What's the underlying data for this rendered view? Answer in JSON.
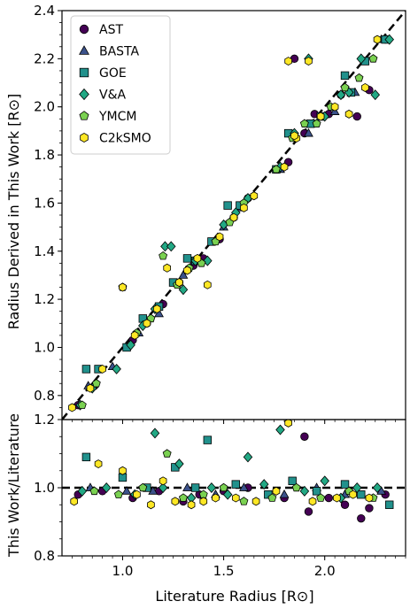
{
  "chart_data": [
    {
      "type": "scatter",
      "panel": "top",
      "xlabel": "",
      "ylabel": "Radius Derived in This Work [R⊙]",
      "xlim": [
        0.7,
        2.4
      ],
      "ylim": [
        0.7,
        2.4
      ],
      "yticks": [
        "0.8",
        "1.0",
        "1.2",
        "1.4",
        "1.6",
        "1.8",
        "2.0",
        "2.2",
        "2.4"
      ],
      "ytick_values": [
        0.8,
        1.0,
        1.2,
        1.4,
        1.6,
        1.8,
        2.0,
        2.2,
        2.4
      ],
      "reference_line": "y = x (dashed)",
      "legend_position": "upper-left",
      "series": [
        {
          "name": "AST",
          "marker": "circle",
          "color": "#440154",
          "x": [
            0.78,
            0.86,
            1.05,
            1.12,
            1.2,
            1.28,
            1.35,
            1.4,
            1.48,
            1.55,
            1.62,
            1.82,
            1.9,
            1.95,
            2.02,
            2.08,
            2.16,
            2.22,
            2.3,
            1.85
          ],
          "y": [
            0.76,
            0.84,
            1.03,
            1.1,
            1.18,
            1.27,
            1.34,
            1.37,
            1.45,
            1.54,
            1.62,
            1.77,
            1.89,
            1.97,
            1.97,
            2.05,
            1.96,
            2.07,
            2.28,
            2.2
          ]
        },
        {
          "name": "BASTA",
          "marker": "triangle",
          "color": "#3b528b",
          "x": [
            0.83,
            0.95,
            1.08,
            1.18,
            1.3,
            1.38,
            1.5,
            1.58,
            1.78,
            1.92,
            2.05,
            2.15,
            2.28
          ],
          "y": [
            0.84,
            0.92,
            1.06,
            1.14,
            1.3,
            1.36,
            1.5,
            1.58,
            1.74,
            1.89,
            1.98,
            2.06,
            2.28
          ]
        },
        {
          "name": "GOE",
          "marker": "square",
          "color": "#21918c",
          "x": [
            0.82,
            0.88,
            1.02,
            1.1,
            1.18,
            1.25,
            1.32,
            1.36,
            1.44,
            1.52,
            1.58,
            1.76,
            1.82,
            1.93,
            1.98,
            2.1,
            2.13,
            2.2,
            2.3
          ],
          "y": [
            0.91,
            0.91,
            1.0,
            1.12,
            1.17,
            1.27,
            1.37,
            1.36,
            1.44,
            1.59,
            1.59,
            1.74,
            1.89,
            1.93,
            1.96,
            2.13,
            2.06,
            2.19,
            2.28
          ]
        },
        {
          "name": "V&A",
          "marker": "diamond",
          "color": "#22a884",
          "x": [
            0.79,
            0.85,
            0.97,
            1.04,
            1.1,
            1.16,
            1.21,
            1.24,
            1.3,
            1.36,
            1.42,
            1.5,
            1.56,
            1.62,
            1.78,
            1.85,
            1.92,
            2.0,
            2.08,
            2.12,
            2.18,
            2.25,
            2.32
          ],
          "y": [
            0.76,
            0.83,
            0.91,
            1.01,
            1.09,
            1.16,
            1.42,
            1.42,
            1.24,
            1.36,
            1.36,
            1.51,
            1.56,
            1.62,
            1.75,
            1.89,
            2.2,
            1.96,
            2.05,
            2.06,
            2.2,
            2.05,
            2.28
          ]
        },
        {
          "name": "YMCM",
          "marker": "pentagon",
          "color": "#7ad151",
          "x": [
            0.8,
            0.87,
            1.0,
            1.07,
            1.14,
            1.2,
            1.27,
            1.33,
            1.39,
            1.46,
            1.53,
            1.6,
            1.76,
            1.84,
            1.9,
            1.96,
            2.03,
            2.1,
            2.17,
            2.24
          ],
          "y": [
            0.76,
            0.85,
            1.25,
            1.06,
            1.12,
            1.38,
            1.26,
            1.33,
            1.35,
            1.44,
            1.52,
            1.6,
            1.74,
            1.87,
            1.93,
            1.93,
            2.0,
            2.08,
            2.12,
            2.2
          ]
        },
        {
          "name": "C2kSMO",
          "marker": "hexagon",
          "color": "#fde725",
          "x": [
            0.75,
            0.84,
            0.9,
            1.0,
            1.06,
            1.12,
            1.17,
            1.22,
            1.28,
            1.32,
            1.37,
            1.42,
            1.48,
            1.55,
            1.6,
            1.65,
            1.8,
            1.86,
            1.92,
            1.98,
            2.05,
            2.12,
            2.2,
            2.26,
            1.85,
            1.82
          ],
          "y": [
            0.75,
            0.83,
            0.91,
            1.25,
            1.05,
            1.1,
            1.16,
            1.33,
            1.27,
            1.32,
            1.37,
            1.26,
            1.46,
            1.54,
            1.58,
            1.63,
            1.75,
            1.87,
            2.19,
            1.96,
            2.0,
            1.97,
            2.08,
            2.28,
            1.88,
            2.19
          ]
        }
      ]
    },
    {
      "type": "scatter",
      "panel": "bottom",
      "xlabel": "Literature Radius [R⊙]",
      "ylabel": "This Work/Literature",
      "xlim": [
        0.7,
        2.4
      ],
      "ylim": [
        0.8,
        1.2
      ],
      "xticks": [
        "1.0",
        "1.5",
        "2.0"
      ],
      "xtick_values": [
        1.0,
        1.5,
        2.0
      ],
      "yticks": [
        "0.8",
        "1.0",
        "1.2"
      ],
      "ytick_values": [
        0.8,
        1.0,
        1.2
      ],
      "reference_line": "y = 1.0 (dashed)",
      "series": [
        {
          "name": "AST",
          "marker": "circle",
          "color": "#440154",
          "x": [
            0.78,
            0.9,
            1.05,
            1.18,
            1.3,
            1.38,
            1.5,
            1.62,
            1.8,
            1.9,
            1.92,
            2.02,
            2.1,
            2.18,
            2.22,
            2.3
          ],
          "y": [
            0.98,
            0.99,
            0.97,
            0.99,
            0.96,
            0.98,
            0.99,
            1.0,
            0.97,
            1.15,
            0.93,
            0.97,
            0.95,
            0.91,
            0.94,
            0.98
          ]
        },
        {
          "name": "BASTA",
          "marker": "triangle",
          "color": "#3b528b",
          "x": [
            0.84,
            1.02,
            1.15,
            1.32,
            1.46,
            1.6,
            1.8,
            1.96,
            2.1,
            2.28
          ],
          "y": [
            1.0,
            0.99,
            0.99,
            1.0,
            0.98,
            1.0,
            0.98,
            1.0,
            0.98,
            0.99
          ]
        },
        {
          "name": "GOE",
          "marker": "square",
          "color": "#21918c",
          "x": [
            0.82,
            1.0,
            1.12,
            1.26,
            1.36,
            1.42,
            1.56,
            1.72,
            1.84,
            1.96,
            2.1,
            2.18,
            2.32
          ],
          "y": [
            1.09,
            1.03,
            1.0,
            1.06,
            1.0,
            1.14,
            1.01,
            0.98,
            1.02,
            0.99,
            1.01,
            0.98,
            0.95
          ]
        },
        {
          "name": "V&A",
          "marker": "diamond",
          "color": "#22a884",
          "x": [
            0.8,
            0.92,
            1.06,
            1.16,
            1.2,
            1.28,
            1.34,
            1.44,
            1.52,
            1.62,
            1.7,
            1.78,
            1.9,
            2.0,
            2.08,
            2.16,
            2.26
          ],
          "y": [
            0.99,
            1.0,
            0.98,
            1.16,
            1.0,
            1.07,
            0.97,
            1.0,
            0.98,
            1.09,
            1.01,
            1.17,
            0.99,
            1.02,
            0.97,
            1.0,
            1.0
          ]
        },
        {
          "name": "YMCM",
          "marker": "pentagon",
          "color": "#7ad151",
          "x": [
            0.86,
            0.98,
            1.1,
            1.22,
            1.3,
            1.4,
            1.5,
            1.6,
            1.74,
            1.86,
            1.98,
            2.12,
            2.24
          ],
          "y": [
            0.99,
            0.98,
            1.0,
            1.1,
            0.97,
            0.98,
            1.0,
            0.96,
            0.97,
            1.0,
            0.97,
            0.99,
            0.97
          ]
        },
        {
          "name": "C2kSMO",
          "marker": "hexagon",
          "color": "#fde725",
          "x": [
            0.76,
            0.88,
            1.0,
            1.07,
            1.14,
            1.2,
            1.26,
            1.34,
            1.4,
            1.46,
            1.56,
            1.66,
            1.76,
            1.82,
            1.94,
            2.06,
            2.14,
            2.22
          ],
          "y": [
            0.96,
            1.07,
            1.05,
            0.98,
            0.95,
            1.02,
            0.96,
            0.95,
            0.96,
            0.97,
            0.97,
            0.96,
            0.99,
            1.19,
            0.96,
            0.97,
            0.98,
            0.97
          ]
        }
      ]
    }
  ]
}
